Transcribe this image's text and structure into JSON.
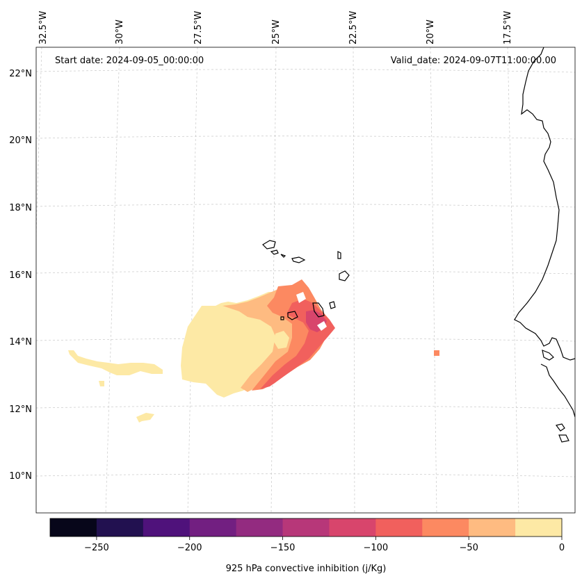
{
  "header": {
    "start_date": "Start date: 2024-09-05_00:00:00",
    "valid_date": "Valid_date: 2024-09-07T11:00:00.00"
  },
  "axes": {
    "lon_labels": [
      "32.5°W",
      "30°W",
      "27.5°W",
      "25°W",
      "22.5°W",
      "20°W",
      "17.5°W"
    ],
    "lat_labels": [
      "22°N",
      "20°N",
      "18°N",
      "16°N",
      "14°N",
      "12°N",
      "10°N"
    ]
  },
  "colorbar": {
    "label": "925 hPa convective inhibition (j/Kg)",
    "ticks": [
      "−250",
      "−200",
      "−150",
      "−100",
      "−50",
      "0"
    ],
    "colors": [
      "#07061a",
      "#221150",
      "#4f127b",
      "#721f81",
      "#932b80",
      "#b73779",
      "#d8456c",
      "#f1605d",
      "#fc8961",
      "#febb81",
      "#fde9a5"
    ],
    "range": [
      -275,
      0
    ]
  },
  "chart_data": {
    "type": "heatmap",
    "title": "925 hPa convective inhibition (j/Kg)",
    "variable": "925 hPa convective inhibition",
    "units": "j/Kg",
    "color_range": [
      -275,
      0
    ],
    "levels": [
      -275,
      -250,
      -225,
      -200,
      -175,
      -150,
      -125,
      -100,
      -75,
      -50,
      -25,
      0
    ],
    "start_date": "2024-09-05_00:00:00",
    "valid_date": "2024-09-07T11:00:00.00",
    "lon_ticks": [
      "32.5°W",
      "30°W",
      "27.5°W",
      "25°W",
      "22.5°W",
      "20°W",
      "17.5°W"
    ],
    "lat_ticks": [
      "22°N",
      "20°N",
      "18°N",
      "16°N",
      "14°N",
      "12°N",
      "10°N"
    ],
    "regions": [
      {
        "name": "main-blob-outer",
        "range": [
          -25,
          0
        ]
      },
      {
        "name": "main-blob-ring",
        "range": [
          -50,
          -25
        ]
      },
      {
        "name": "main-blob-mid",
        "range": [
          -75,
          -50
        ]
      },
      {
        "name": "main-blob-east",
        "range": [
          -100,
          -75
        ]
      },
      {
        "name": "main-blob-core",
        "range": [
          -125,
          -100
        ]
      }
    ]
  }
}
